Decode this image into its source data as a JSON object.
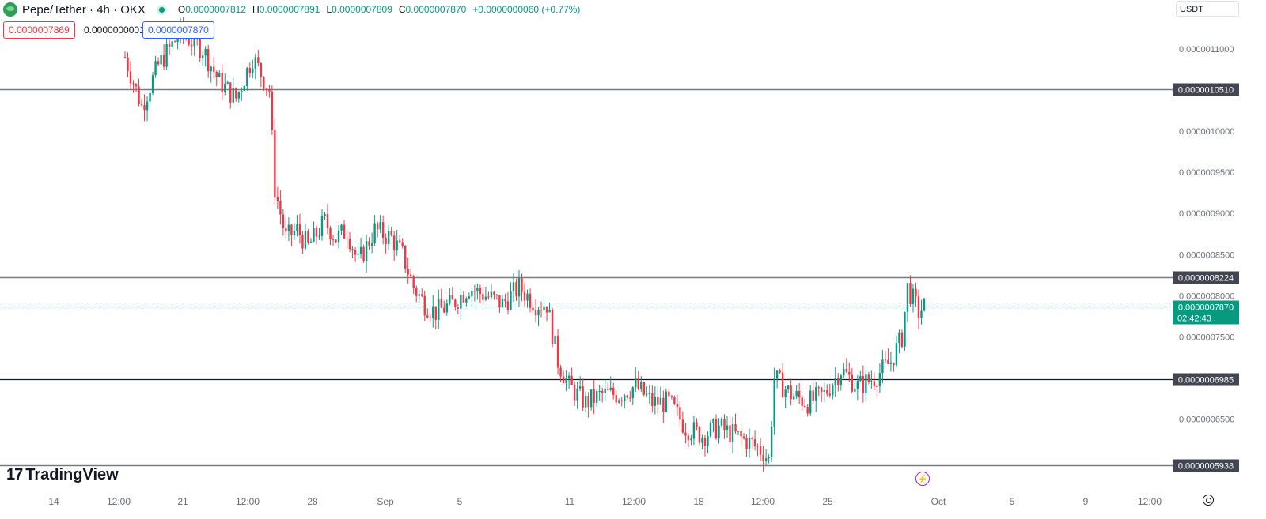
{
  "header": {
    "symbol": "Pepe/Tether · 4h · OKX",
    "ohlc": [
      {
        "key": "O",
        "value": "0.0000007812"
      },
      {
        "key": "H",
        "value": "0.0000007891"
      },
      {
        "key": "L",
        "value": "0.0000007809"
      },
      {
        "key": "C",
        "value": "0.0000007870"
      }
    ],
    "change": "+0.0000000060 (+0.77%)"
  },
  "quote": {
    "bid": "0.0000007869",
    "spread": "0.0000000001",
    "ask": "0.0000007870"
  },
  "currency": "USDT",
  "brand": "TradingView",
  "colors": {
    "up": "#089981",
    "down": "#f23645",
    "level_line": "#787b86",
    "current_line": "#089981",
    "label_bg": "#434651",
    "accent_ask": "#2962ff",
    "event_icon": "#9c27b0"
  },
  "icons": {
    "symbol": "pepe-coin-icon",
    "status": "market-open-icon",
    "event": "lightning-icon",
    "settings": "gear-icon"
  },
  "chart_data": {
    "type": "candlestick",
    "timeframe": "4h",
    "x_tick_labels": [
      "14",
      "12:00",
      "21",
      "12:00",
      "28",
      "Sep",
      "5",
      "11",
      "12:00",
      "18",
      "12:00",
      "25",
      "Oct",
      "5",
      "9",
      "12:00"
    ],
    "y_tick_labels": [
      "0.0000011000",
      "0.0000010000",
      "0.0000009500",
      "0.0000009000",
      "0.0000008500",
      "0.0000008000",
      "0.0000007500",
      "0.0000006500"
    ],
    "ylim": [
      5.8e-07,
      1.14e-06
    ],
    "horizontal_levels": [
      {
        "value": 1.051e-06,
        "label": "0.0000010510"
      },
      {
        "value": 8.224e-07,
        "label": "0.0000008224"
      },
      {
        "value": 6.985e-07,
        "label": "0.0000006985"
      },
      {
        "value": 5.938e-07,
        "label": "0.0000005938"
      }
    ],
    "current_price": {
      "value": 7.87e-07,
      "label": "0.0000007870",
      "countdown": "02:42:43"
    },
    "price_path": [
      [
        0,
        1.09
      ],
      [
        6,
        1.03
      ],
      [
        12,
        1.08
      ],
      [
        20,
        1.12
      ],
      [
        28,
        1.1
      ],
      [
        34,
        1.06
      ],
      [
        40,
        1.04
      ],
      [
        46,
        1.09
      ],
      [
        52,
        1.05
      ],
      [
        54,
        0.93
      ],
      [
        58,
        0.87
      ],
      [
        62,
        0.88
      ],
      [
        66,
        0.86
      ],
      [
        72,
        0.89
      ],
      [
        76,
        0.87
      ],
      [
        80,
        0.88
      ],
      [
        84,
        0.84
      ],
      [
        90,
        0.88
      ],
      [
        96,
        0.87
      ],
      [
        100,
        0.85
      ],
      [
        104,
        0.81
      ],
      [
        108,
        0.79
      ],
      [
        112,
        0.78
      ],
      [
        118,
        0.79
      ],
      [
        124,
        0.81
      ],
      [
        130,
        0.8
      ],
      [
        136,
        0.79
      ],
      [
        142,
        0.81
      ],
      [
        148,
        0.79
      ],
      [
        152,
        0.79
      ],
      [
        156,
        0.72
      ],
      [
        160,
        0.69
      ],
      [
        166,
        0.67
      ],
      [
        172,
        0.68
      ],
      [
        178,
        0.68
      ],
      [
        184,
        0.69
      ],
      [
        190,
        0.67
      ],
      [
        196,
        0.67
      ],
      [
        202,
        0.64
      ],
      [
        208,
        0.63
      ],
      [
        214,
        0.64
      ],
      [
        220,
        0.63
      ],
      [
        226,
        0.62
      ],
      [
        230,
        0.61
      ],
      [
        232,
        0.6
      ],
      [
        234,
        0.7
      ],
      [
        240,
        0.68
      ],
      [
        246,
        0.67
      ],
      [
        252,
        0.68
      ],
      [
        258,
        0.71
      ],
      [
        264,
        0.69
      ],
      [
        270,
        0.7
      ],
      [
        276,
        0.72
      ],
      [
        280,
        0.75
      ],
      [
        282,
        0.81
      ],
      [
        286,
        0.78
      ],
      [
        288,
        0.787
      ]
    ],
    "grid": false,
    "legend": "none"
  }
}
